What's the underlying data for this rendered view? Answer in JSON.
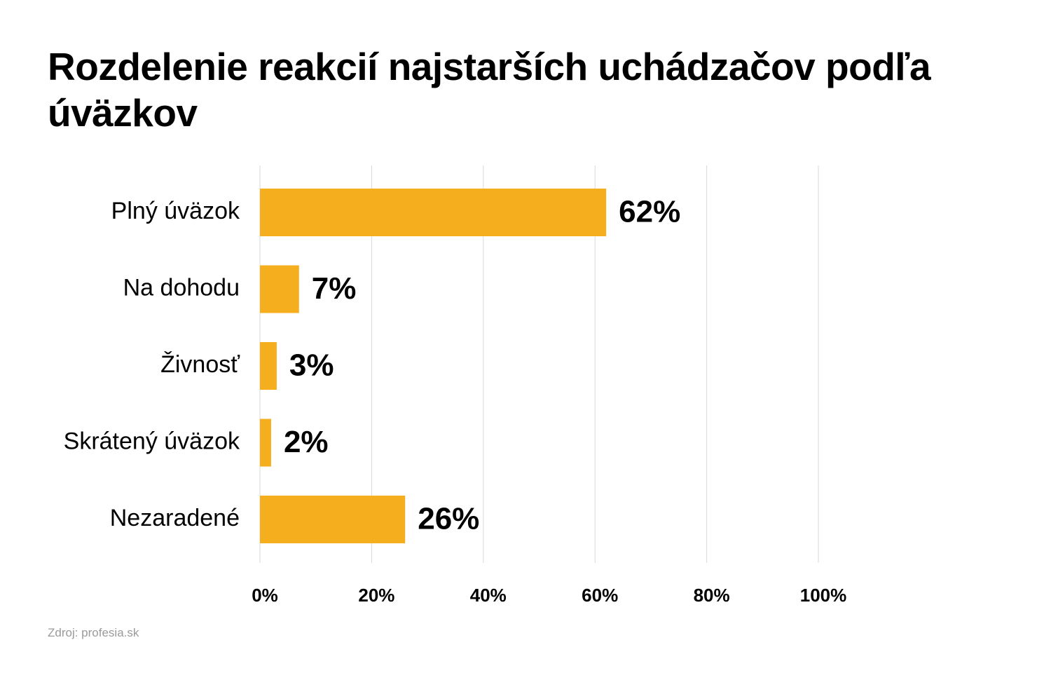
{
  "chart_data": {
    "type": "bar",
    "orientation": "horizontal",
    "title": "Rozdelenie reakcií najstarších uchádzačov podľa úväzkov",
    "categories": [
      "Plný úväzok",
      "Na dohodu",
      "Živnosť",
      "Skrátený úväzok",
      "Nezaradené"
    ],
    "values": [
      62,
      7,
      3,
      2,
      26
    ],
    "value_labels": [
      "62%",
      "7%",
      "3%",
      "2%",
      "26%"
    ],
    "xlim": [
      0,
      100
    ],
    "xticks": [
      0,
      20,
      40,
      60,
      80,
      100
    ],
    "xtick_labels": [
      "0%",
      "20%",
      "40%",
      "60%",
      "80%",
      "100%"
    ],
    "grid": "vertical",
    "bar_color": "#F5AE1E",
    "gridline_color": "#D9D9D9"
  },
  "source": "Zdroj: profesia.sk"
}
